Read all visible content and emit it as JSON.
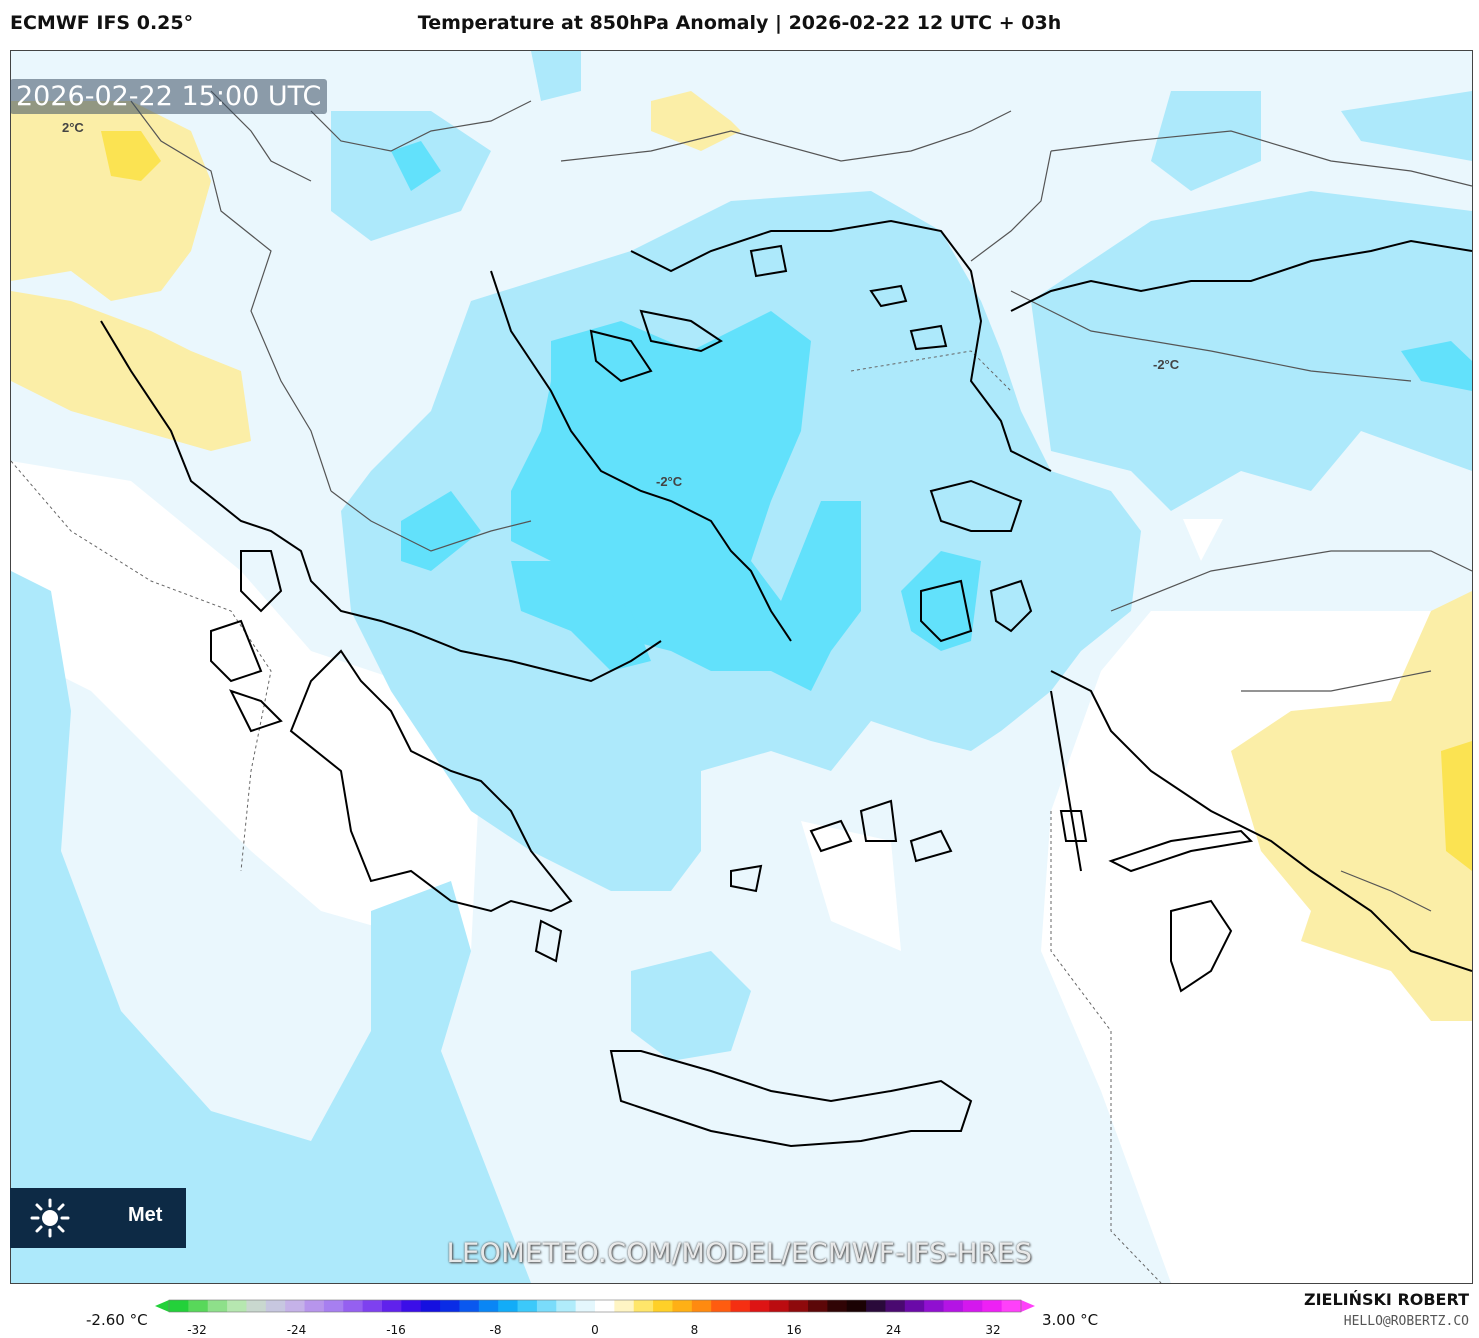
{
  "header": {
    "model": "ECMWF IFS 0.25°",
    "title": "Temperature at 850hPa Anomaly | 2026-02-22 12 UTC + 03h"
  },
  "map": {
    "valid_time": "2026-02-22 15:00 UTC",
    "labels": [
      {
        "id": "label-nw",
        "text": "2°C"
      },
      {
        "id": "label-aegean",
        "text": "-2°C"
      },
      {
        "id": "label-east",
        "text": "-2°C"
      }
    ],
    "fill_colors": {
      "light_blue": "#eaf7fd",
      "sky_blue": "#ade9fb",
      "cyan": "#62e1fb",
      "light_yellow": "#fbeea7",
      "yellow": "#fbe352",
      "white": "#ffffff"
    }
  },
  "logo": {
    "text": "Met",
    "icon": "sun-icon"
  },
  "watermark": "LEOMETEO.COM/MODEL/ECMWF-IFS-HRES",
  "colorbar": {
    "min_label": "-2.60 °C",
    "max_label": "3.00 °C",
    "ticks": [
      "-32",
      "-24",
      "-16",
      "-8",
      "0",
      "8",
      "16",
      "24",
      "32"
    ],
    "colors": [
      "#23d13a",
      "#58d85a",
      "#8ee08a",
      "#b6e7b0",
      "#c9d8cf",
      "#c7c7e0",
      "#c5b2e8",
      "#b795ec",
      "#a77ff0",
      "#9560f0",
      "#7e41ef",
      "#6022ec",
      "#3b0ee8",
      "#1510e0",
      "#0a2ce6",
      "#0a58ef",
      "#0a86f5",
      "#12acf8",
      "#3cc9fa",
      "#7adcfb",
      "#b0ecfb",
      "#e4f7fd",
      "#ffffff",
      "#fff5c4",
      "#ffe66a",
      "#ffd028",
      "#ffb015",
      "#ff8a10",
      "#ff5c10",
      "#f52f12",
      "#dd1414",
      "#bb0c10",
      "#8e0a0c",
      "#5c0708",
      "#300405",
      "#1a0203",
      "#2a0a3a",
      "#4a0a70",
      "#6a0aa8",
      "#9010d0",
      "#b414e4",
      "#d418ee",
      "#ee20f5",
      "#ff40fa"
    ]
  },
  "credits": {
    "author": "ZIELIŃSKI ROBERT",
    "email": "HELLO@ROBERTZ.CO"
  }
}
